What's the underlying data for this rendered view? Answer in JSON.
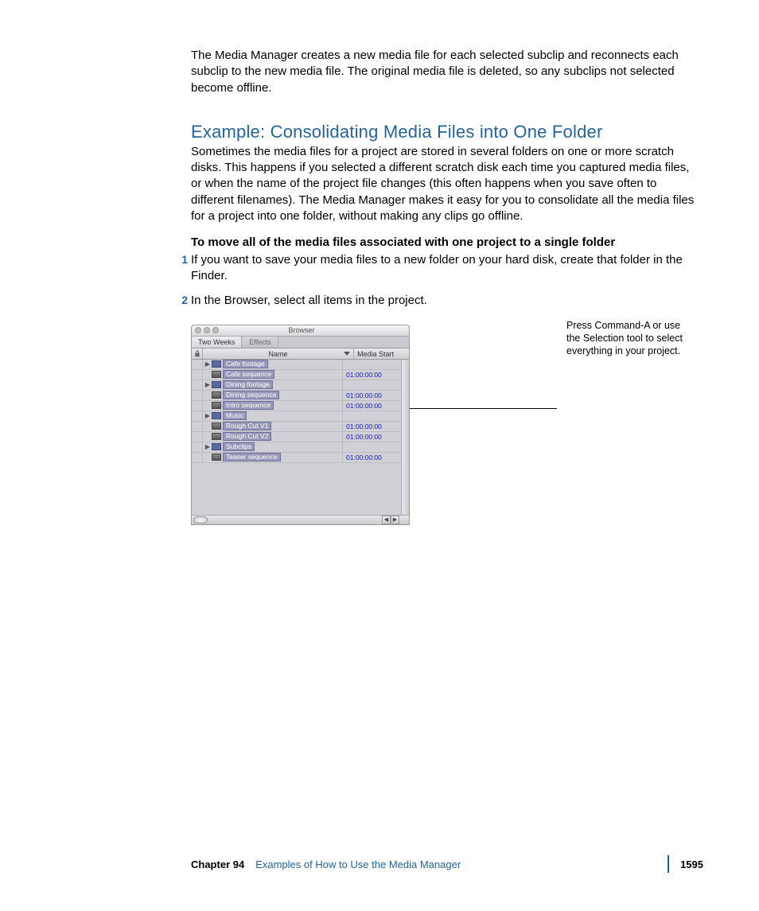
{
  "intro_para": "The Media Manager creates a new media file for each selected subclip and reconnects each subclip to the new media file. The original media file is deleted, so any subclips not selected become offline.",
  "heading": "Example: Consolidating Media Files into One Folder",
  "body_para": "Sometimes the media files for a project are stored in several folders on one or more scratch disks. This happens if you selected a different scratch disk each time you captured media files, or when the name of the project file changes (this often happens when you save often to different filenames). The Media Manager makes it easy for you to consolidate all the media files for a project into one folder, without making any clips go offline.",
  "subheading": "To move all of the media files associated with one project to a single folder",
  "steps": [
    {
      "n": "1",
      "t": "If you want to save your media files to a new folder on your hard disk, create that folder in the Finder."
    },
    {
      "n": "2",
      "t": "In the Browser, select all items in the project."
    }
  ],
  "browser": {
    "title": "Browser",
    "tabs": {
      "active": "Two Weeks",
      "inactive": "Effects"
    },
    "columns": {
      "name": "Name",
      "media": "Media Start"
    },
    "rows": [
      {
        "disclosure": true,
        "icon": "bin",
        "label": "Cafe footage",
        "media": ""
      },
      {
        "disclosure": false,
        "icon": "seq",
        "label": "Cafe sequence",
        "media": "01:00:00:00"
      },
      {
        "disclosure": true,
        "icon": "bin",
        "label": "Dining footage",
        "media": ""
      },
      {
        "disclosure": false,
        "icon": "seq",
        "label": "Dining sequence",
        "media": "01:00:00:00"
      },
      {
        "disclosure": false,
        "icon": "seq",
        "label": "Intro sequence",
        "media": "01:00:00:00"
      },
      {
        "disclosure": true,
        "icon": "bin",
        "label": "Music",
        "media": ""
      },
      {
        "disclosure": false,
        "icon": "seq",
        "label": "Rough Cut V1",
        "media": "01:00:00:00"
      },
      {
        "disclosure": false,
        "icon": "seq",
        "label": "Rough Cut V2",
        "media": "01:00:00:00"
      },
      {
        "disclosure": true,
        "icon": "bin",
        "label": "Subclips",
        "media": ""
      },
      {
        "disclosure": false,
        "icon": "seq",
        "label": "Teaser sequence",
        "media": "01:00:00:00"
      }
    ]
  },
  "callout": "Press Command-A or use the Selection tool to select everything in your project.",
  "footer": {
    "chapter": "Chapter 94",
    "title": "Examples of How to Use the Media Manager",
    "page": "1595"
  },
  "colors": {
    "accent": "#25639a",
    "timecode": "#1520c0",
    "selection": "#9898b8"
  }
}
